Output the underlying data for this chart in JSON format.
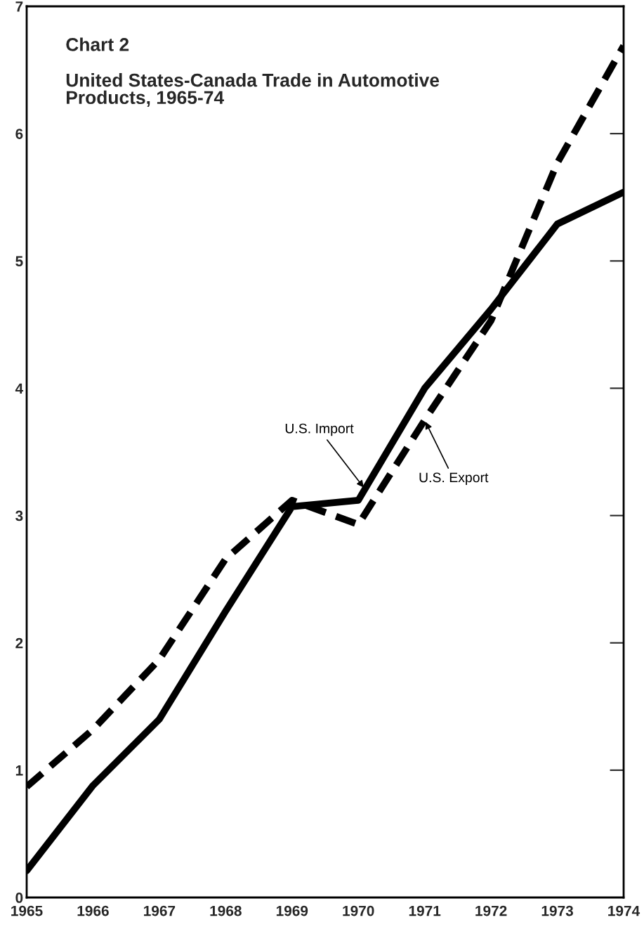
{
  "chart_data": {
    "type": "line",
    "title": "Chart 2",
    "subtitle": "United States-Canada Trade in Automotive\nProducts, 1965-74",
    "x": [
      1965,
      1966,
      1967,
      1968,
      1969,
      1970,
      1971,
      1972,
      1973,
      1974
    ],
    "series": [
      {
        "name": "U.S. Import",
        "color": "#000000",
        "line_style": "solid",
        "values": [
          0.21,
          0.88,
          1.4,
          2.25,
          3.07,
          3.12,
          4.0,
          4.62,
          5.29,
          5.54
        ]
      },
      {
        "name": "U.S. Export",
        "color": "#000000",
        "line_style": "dashed",
        "values": [
          0.87,
          1.32,
          1.87,
          2.66,
          3.12,
          2.93,
          3.75,
          4.53,
          5.77,
          6.69
        ]
      }
    ],
    "xlim": [
      1965,
      1974
    ],
    "xticks": [
      1965,
      1966,
      1967,
      1968,
      1969,
      1970,
      1971,
      1972,
      1973,
      1974
    ],
    "ylim": [
      0,
      7
    ],
    "yticks": [
      0,
      1,
      2,
      3,
      4,
      5,
      6,
      7
    ],
    "grid": false,
    "legend": false,
    "marker": "none"
  }
}
